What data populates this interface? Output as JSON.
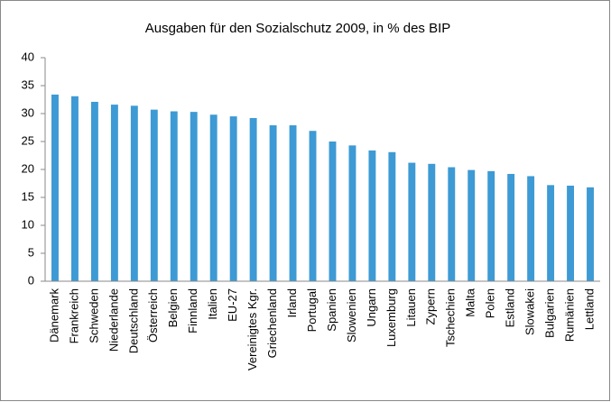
{
  "chart_data": {
    "type": "bar",
    "title": "Ausgaben für den Sozialschutz 2009, in % des BIP",
    "categories": [
      "Dänemark",
      "Frankreich",
      "Schweden",
      "Niederlande",
      "Deutschland",
      "Österreich",
      "Belgien",
      "Finnland",
      "Italien",
      "EU-27",
      "Vereinigtes Kgr.",
      "Griechenland",
      "Irland",
      "Portugal",
      "Spanien",
      "Slowenien",
      "Ungarn",
      "Luxemburg",
      "Litauen",
      "Zypern",
      "Tschechien",
      "Malta",
      "Polen",
      "Estland",
      "Slowakei",
      "Bulgarien",
      "Rumänien",
      "Lettland"
    ],
    "values": [
      33.4,
      33.1,
      32.1,
      31.6,
      31.4,
      30.7,
      30.4,
      30.3,
      29.8,
      29.5,
      29.2,
      27.9,
      27.9,
      26.9,
      25.0,
      24.3,
      23.4,
      23.1,
      21.2,
      21.0,
      20.4,
      19.9,
      19.7,
      19.2,
      18.8,
      17.2,
      17.1,
      16.8
    ],
    "color": "#3d9ad4",
    "ylim": [
      0,
      40
    ],
    "yticks": [
      0,
      5,
      10,
      15,
      20,
      25,
      30,
      35,
      40
    ],
    "grid": false
  }
}
